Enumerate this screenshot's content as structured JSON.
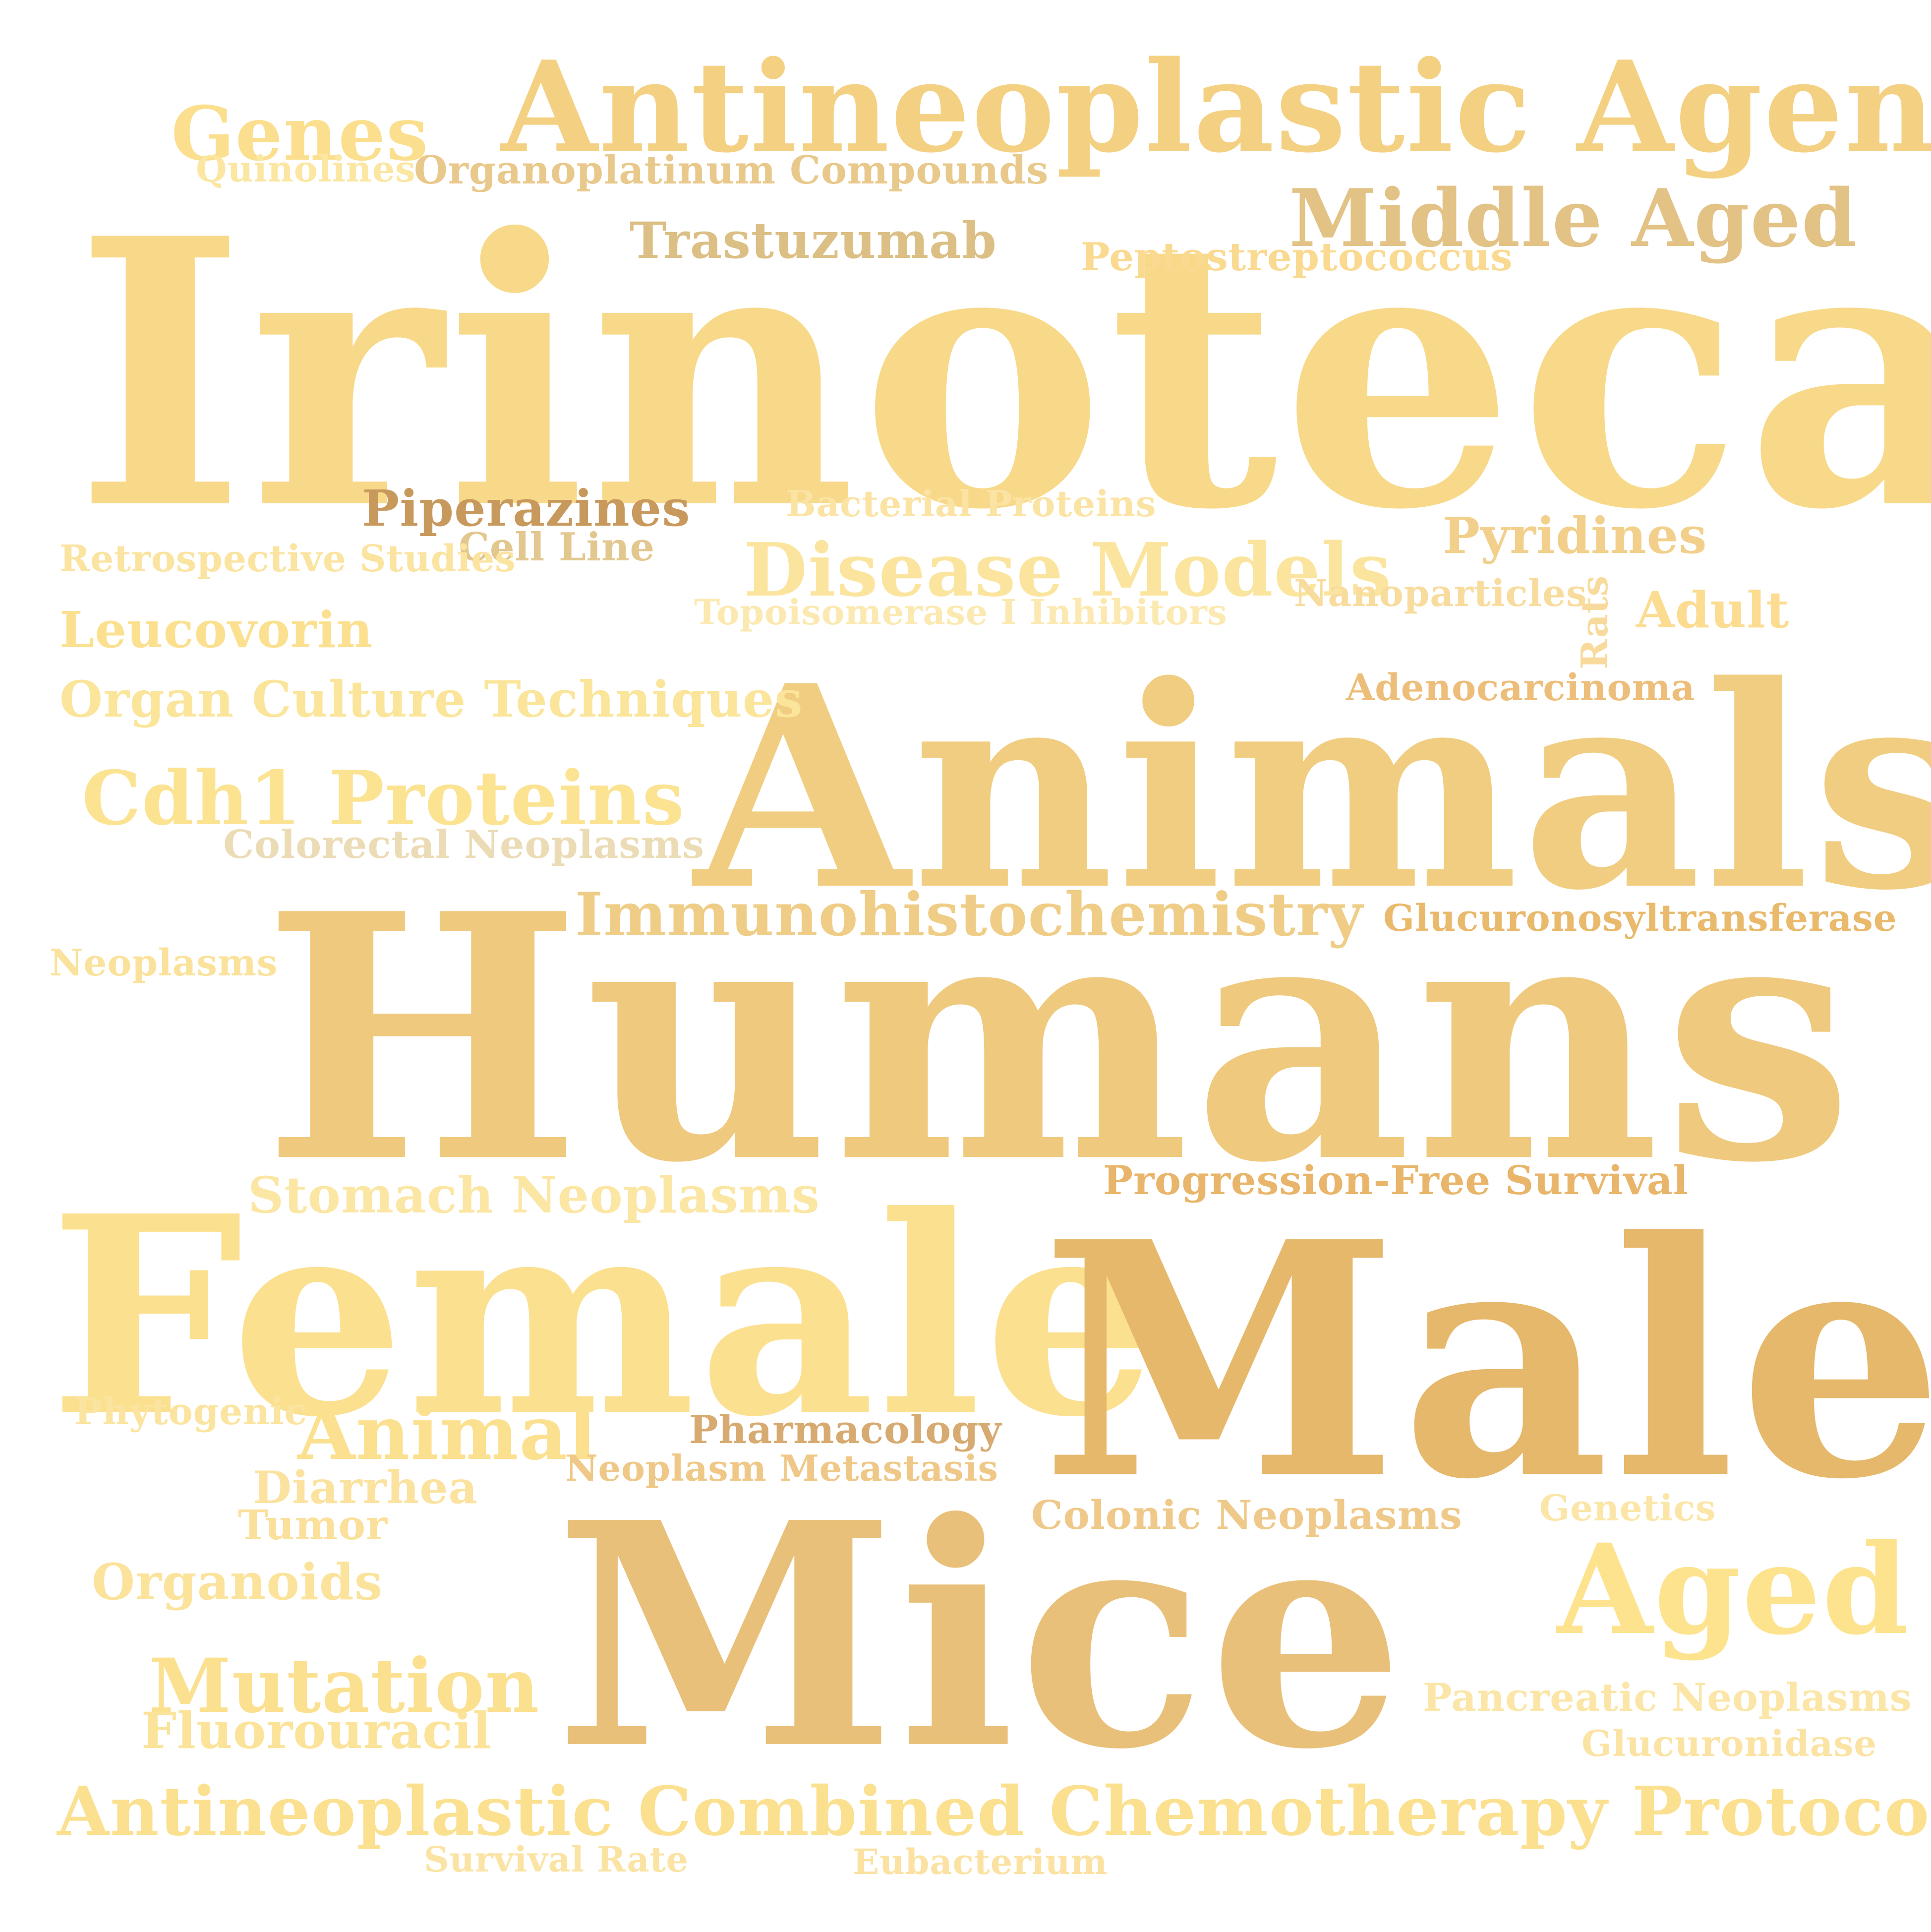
{
  "words": [
    {
      "text": "Irinotecan",
      "color": "#f8d98a"
    },
    {
      "text": "Humans",
      "color": "#efc97e"
    },
    {
      "text": "Animals",
      "color": "#f0cd80"
    },
    {
      "text": "Female",
      "color": "#fbe08f"
    },
    {
      "text": "Male",
      "color": "#e6b86b"
    },
    {
      "text": "Mice",
      "color": "#e9c07a"
    },
    {
      "text": "Antineoplastic Agents",
      "color": "#f4d182"
    },
    {
      "text": "Middle Aged",
      "color": "#e3c286"
    },
    {
      "text": "Genes",
      "color": "#fbdf8e"
    },
    {
      "text": "Quinolines",
      "color": "#fbe6a2"
    },
    {
      "text": "Organoplatinum Compounds",
      "color": "#e8c98b"
    },
    {
      "text": "Trastuzumab",
      "color": "#dbbf85"
    },
    {
      "text": "Peptostreptococcus",
      "color": "#fad990"
    },
    {
      "text": "Piperazines",
      "color": "#c8995d"
    },
    {
      "text": "Cell Line",
      "color": "#e2c78f"
    },
    {
      "text": "Bacterial Proteins",
      "color": "#fbe3a4"
    },
    {
      "text": "Pyridines",
      "color": "#f2cf8a"
    },
    {
      "text": "Retrospective Studies",
      "color": "#fbe3a0"
    },
    {
      "text": "Disease Models",
      "color": "#fbe59e"
    },
    {
      "text": "Nanoparticles",
      "color": "#f8dc9e"
    },
    {
      "text": "Topoisomerase I Inhibitors",
      "color": "#fbe9b1"
    },
    {
      "text": "Adult",
      "color": "#fbdc90"
    },
    {
      "text": "Rats",
      "color": "#f8db9c"
    },
    {
      "text": "Leucovorin",
      "color": "#fbe090"
    },
    {
      "text": "Adenocarcinoma",
      "color": "#edbe7a"
    },
    {
      "text": "Organ Culture Techniques",
      "color": "#fbe59b"
    },
    {
      "text": "Cdh1 Proteins",
      "color": "#fbe392"
    },
    {
      "text": "Colorectal Neoplasms",
      "color": "#ebdcb6"
    },
    {
      "text": "Immunohistochemistry",
      "color": "#efcd86"
    },
    {
      "text": "Glucuronosyltransferase",
      "color": "#e9b96c"
    },
    {
      "text": "Neoplasms",
      "color": "#fbe29c"
    },
    {
      "text": "Stomach Neoplasms",
      "color": "#fbe6a4"
    },
    {
      "text": "Progression-Free Survival",
      "color": "#e8b56a"
    },
    {
      "text": "Phytogenic",
      "color": "#fbe4a0"
    },
    {
      "text": "Animal",
      "color": "#fbe08f"
    },
    {
      "text": "Pharmacology",
      "color": "#d6aa70"
    },
    {
      "text": "Neoplasm Metastasis",
      "color": "#efc887"
    },
    {
      "text": "Diarrhea",
      "color": "#fbe29e"
    },
    {
      "text": "Tumor",
      "color": "#fbe09c"
    },
    {
      "text": "Colonic Neoplasms",
      "color": "#efc98a"
    },
    {
      "text": "Genetics",
      "color": "#fbe6a8"
    },
    {
      "text": "Organoids",
      "color": "#fbe39c"
    },
    {
      "text": "Aged",
      "color": "#fde38d"
    },
    {
      "text": "Mutation",
      "color": "#fbe08f"
    },
    {
      "text": "Fluorouracil",
      "color": "#fbe39a"
    },
    {
      "text": "Pancreatic Neoplasms",
      "color": "#fbe6a8"
    },
    {
      "text": "Glucuronidase",
      "color": "#fbe3a4"
    },
    {
      "text": "Antineoplastic Combined Chemotherapy Protocols",
      "color": "#fbe090"
    },
    {
      "text": "Survival Rate",
      "color": "#fbe3a4"
    },
    {
      "text": "Eubacterium",
      "color": "#fbe2a2"
    }
  ]
}
